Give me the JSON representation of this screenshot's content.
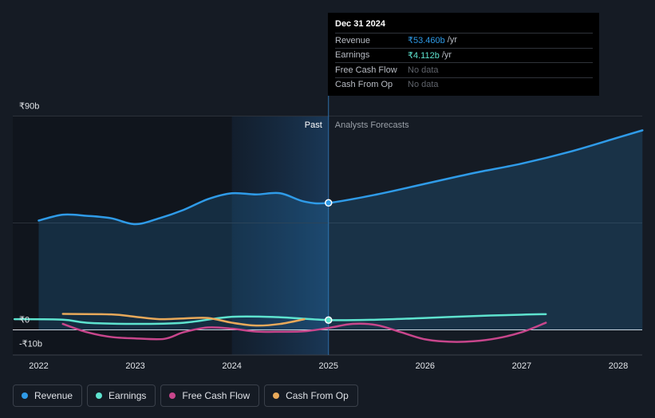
{
  "tooltip": {
    "date": "Dec 31 2024",
    "rows": [
      {
        "label": "Revenue",
        "value": "₹53.460b",
        "unit": "/yr",
        "color": "#2f9be8"
      },
      {
        "label": "Earnings",
        "value": "₹4.112b",
        "unit": "/yr",
        "color": "#5ee3cf"
      },
      {
        "label": "Free Cash Flow",
        "value": "No data",
        "unit": "",
        "color": "#5f636b"
      },
      {
        "label": "Cash From Op",
        "value": "No data",
        "unit": "",
        "color": "#5f636b"
      }
    ]
  },
  "legend": [
    {
      "label": "Revenue",
      "color": "#2f9be8"
    },
    {
      "label": "Earnings",
      "color": "#5ee3cf"
    },
    {
      "label": "Free Cash Flow",
      "color": "#c8468c"
    },
    {
      "label": "Cash From Op",
      "color": "#e8a95a"
    }
  ],
  "chart_data": {
    "type": "line",
    "title": "",
    "ylim": [
      -10,
      90
    ],
    "y_ticks": [
      {
        "value": 90,
        "label": "₹90b"
      },
      {
        "value": 0,
        "label": "₹0"
      },
      {
        "value": -10,
        "label": "-₹10b"
      }
    ],
    "x_ticks": [
      {
        "value": 2022,
        "label": "2022"
      },
      {
        "value": 2023,
        "label": "2023"
      },
      {
        "value": 2024,
        "label": "2024"
      },
      {
        "value": 2025,
        "label": "2025"
      },
      {
        "value": 2026,
        "label": "2026"
      },
      {
        "value": 2027,
        "label": "2027"
      },
      {
        "value": 2028,
        "label": "2028"
      }
    ],
    "xlim": [
      2021.75,
      2028.25
    ],
    "divider_x": 2025.0,
    "past_label": "Past",
    "forecast_label": "Analysts Forecasts",
    "highlight_range": [
      2024.0,
      2025.0
    ],
    "series": [
      {
        "name": "Revenue",
        "color": "#2f9be8",
        "fill": true,
        "points": [
          [
            2022.0,
            46.0
          ],
          [
            2022.25,
            48.5
          ],
          [
            2022.5,
            48.0
          ],
          [
            2022.75,
            47.0
          ],
          [
            2023.0,
            44.5
          ],
          [
            2023.25,
            47.0
          ],
          [
            2023.5,
            50.5
          ],
          [
            2023.75,
            55.0
          ],
          [
            2024.0,
            57.5
          ],
          [
            2024.25,
            57.0
          ],
          [
            2024.5,
            57.5
          ],
          [
            2024.75,
            54.0
          ],
          [
            2025.0,
            53.46
          ],
          [
            2025.5,
            57.0
          ],
          [
            2026.0,
            61.5
          ],
          [
            2026.5,
            66.0
          ],
          [
            2027.0,
            70.0
          ],
          [
            2027.5,
            75.0
          ],
          [
            2028.0,
            81.0
          ],
          [
            2028.25,
            84.0
          ]
        ]
      },
      {
        "name": "Earnings",
        "color": "#5ee3cf",
        "fill": false,
        "points": [
          [
            2021.75,
            4.5
          ],
          [
            2022.25,
            4.3
          ],
          [
            2022.5,
            3.0
          ],
          [
            2023.0,
            2.5
          ],
          [
            2023.5,
            3.0
          ],
          [
            2024.0,
            5.5
          ],
          [
            2024.5,
            5.3
          ],
          [
            2025.0,
            4.112
          ],
          [
            2025.5,
            4.3
          ],
          [
            2026.0,
            5.0
          ],
          [
            2026.5,
            5.8
          ],
          [
            2027.0,
            6.4
          ],
          [
            2027.25,
            6.6
          ]
        ]
      },
      {
        "name": "Free Cash Flow",
        "color": "#c8468c",
        "fill": false,
        "points": [
          [
            2022.25,
            2.5
          ],
          [
            2022.5,
            -1.0
          ],
          [
            2022.75,
            -3.0
          ],
          [
            2023.0,
            -3.6
          ],
          [
            2023.3,
            -3.8
          ],
          [
            2023.5,
            -1.0
          ],
          [
            2023.75,
            1.0
          ],
          [
            2024.0,
            0.5
          ],
          [
            2024.25,
            -0.7
          ],
          [
            2024.5,
            -0.8
          ],
          [
            2024.75,
            -0.6
          ],
          [
            2025.0,
            0.8
          ],
          [
            2025.25,
            2.5
          ],
          [
            2025.5,
            2.0
          ],
          [
            2025.75,
            -1.0
          ],
          [
            2026.0,
            -4.0
          ],
          [
            2026.25,
            -5.0
          ],
          [
            2026.5,
            -4.8
          ],
          [
            2026.75,
            -3.5
          ],
          [
            2027.0,
            -1.0
          ],
          [
            2027.25,
            3.0
          ]
        ]
      },
      {
        "name": "Cash From Op",
        "color": "#e8a95a",
        "fill": false,
        "points": [
          [
            2022.25,
            6.7
          ],
          [
            2022.75,
            6.5
          ],
          [
            2023.0,
            5.5
          ],
          [
            2023.25,
            4.5
          ],
          [
            2023.5,
            4.8
          ],
          [
            2023.75,
            5.0
          ],
          [
            2024.0,
            3.0
          ],
          [
            2024.25,
            1.8
          ],
          [
            2024.5,
            2.5
          ],
          [
            2024.75,
            4.5
          ]
        ]
      }
    ],
    "markers": [
      {
        "series": "Revenue",
        "x": 2025.0,
        "y": 53.46
      },
      {
        "series": "Earnings",
        "x": 2025.0,
        "y": 4.112
      }
    ]
  }
}
